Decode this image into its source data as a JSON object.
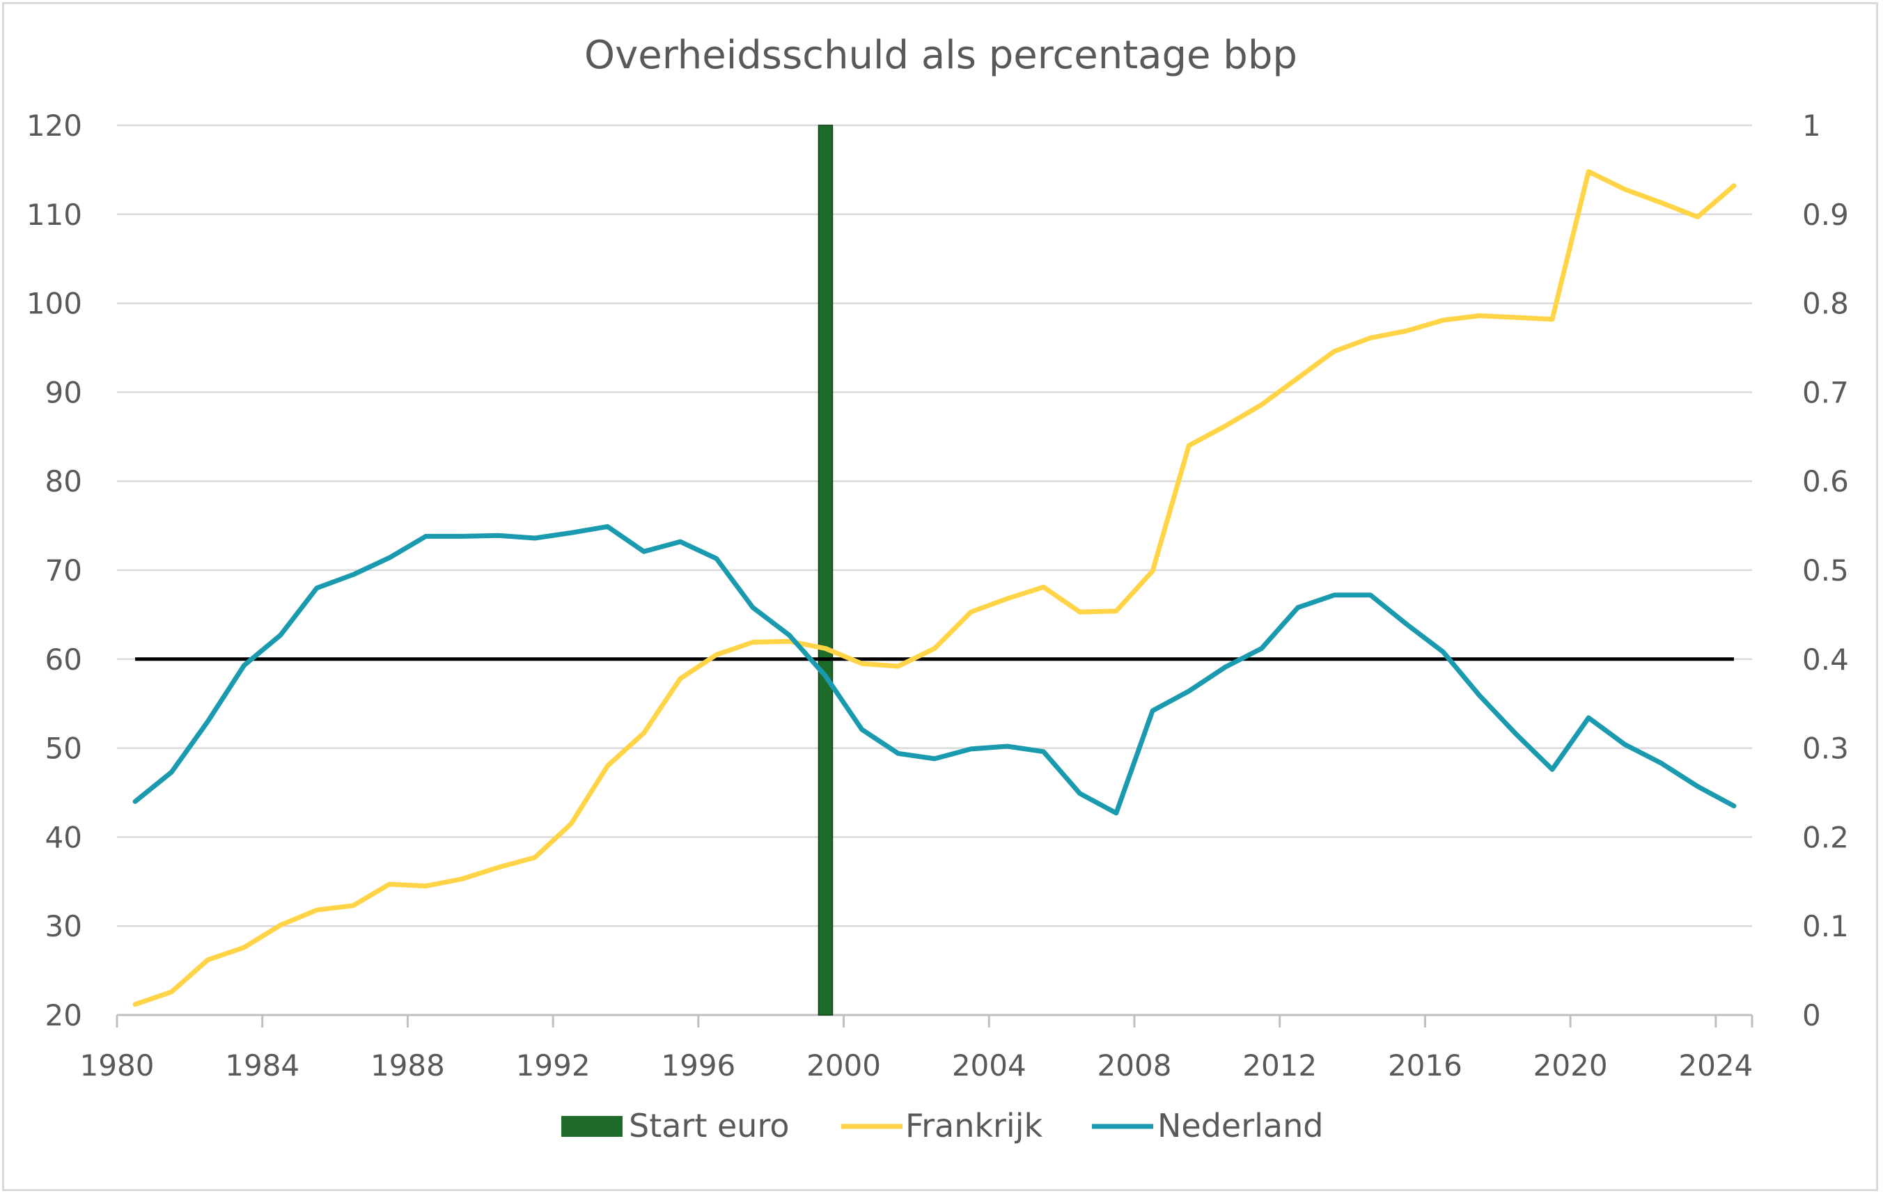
{
  "chart_data": {
    "type": "line",
    "title": "Overheidsschuld als percentage bbp",
    "x": [
      1980,
      1981,
      1982,
      1983,
      1984,
      1985,
      1986,
      1987,
      1988,
      1989,
      1990,
      1991,
      1992,
      1993,
      1994,
      1995,
      1996,
      1997,
      1998,
      1999,
      2000,
      2001,
      2002,
      2003,
      2004,
      2005,
      2006,
      2007,
      2008,
      2009,
      2010,
      2011,
      2012,
      2013,
      2014,
      2015,
      2016,
      2017,
      2018,
      2019,
      2020,
      2021,
      2022,
      2023,
      2024
    ],
    "x_tick_labels": [
      "1980",
      "1984",
      "1988",
      "1992",
      "1996",
      "2000",
      "2004",
      "2008",
      "2012",
      "2016",
      "2020",
      "2024"
    ],
    "y_left": {
      "min": 20,
      "max": 120,
      "ticks": [
        "20",
        "30",
        "40",
        "50",
        "60",
        "70",
        "80",
        "90",
        "100",
        "110",
        "120"
      ]
    },
    "y_right": {
      "min": 0,
      "max": 1,
      "ticks": [
        "0",
        "0.1",
        "0.2",
        "0.3",
        "0.4",
        "0.5",
        "0.6",
        "0.7",
        "0.8",
        "0.9",
        "1"
      ]
    },
    "grid": true,
    "legend_position": "bottom",
    "series": [
      {
        "name": "Frankrijk",
        "axis": "left",
        "color": "#FFD447",
        "values": [
          21.2,
          22.6,
          26.2,
          27.6,
          30.1,
          31.8,
          32.3,
          34.7,
          34.5,
          35.3,
          36.6,
          37.7,
          41.5,
          48.0,
          51.7,
          57.8,
          60.5,
          61.9,
          62.0,
          61.2,
          59.5,
          59.2,
          61.2,
          65.3,
          66.8,
          68.1,
          65.3,
          65.4,
          69.9,
          84.0,
          86.2,
          88.6,
          91.6,
          94.6,
          96.1,
          96.9,
          98.1,
          98.6,
          98.4,
          98.2,
          114.8,
          112.8,
          111.3,
          109.7,
          113.2
        ]
      },
      {
        "name": "Nederland",
        "axis": "left",
        "color": "#1A9AAE",
        "values": [
          44.0,
          47.3,
          53.0,
          59.3,
          62.7,
          68.0,
          69.5,
          71.4,
          73.8,
          73.8,
          73.9,
          73.6,
          74.2,
          74.9,
          72.1,
          73.2,
          71.3,
          65.8,
          62.7,
          58.1,
          52.1,
          49.4,
          48.8,
          49.9,
          50.2,
          49.6,
          44.9,
          42.7,
          54.2,
          56.4,
          59.1,
          61.2,
          65.8,
          67.2,
          67.2,
          63.9,
          60.8,
          55.9,
          51.6,
          47.6,
          53.4,
          50.4,
          48.3,
          45.7,
          43.5
        ]
      },
      {
        "name": "Start euro",
        "type": "bar",
        "axis": "right",
        "color": "#1E6B2A",
        "x": 1999,
        "value": 1
      }
    ],
    "reference_line": {
      "value": 60,
      "axis": "left",
      "color": "#000000"
    }
  }
}
